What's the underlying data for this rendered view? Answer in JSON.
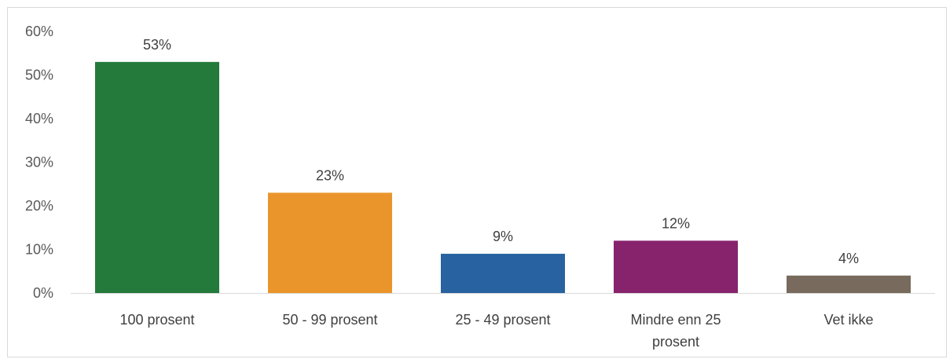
{
  "chart_data": {
    "type": "bar",
    "categories": [
      "100 prosent",
      "50 - 99 prosent",
      "25 - 49 prosent",
      "Mindre enn 25 prosent",
      "Vet ikke"
    ],
    "category_lines": [
      [
        "100 prosent"
      ],
      [
        "50 - 99 prosent"
      ],
      [
        "25 - 49 prosent"
      ],
      [
        "Mindre enn 25",
        "prosent"
      ],
      [
        "Vet ikke"
      ]
    ],
    "values": [
      53,
      23,
      9,
      12,
      4
    ],
    "data_labels": [
      "53%",
      "23%",
      "9%",
      "12%",
      "4%"
    ],
    "colors": [
      "#237a3b",
      "#ea952b",
      "#2862a0",
      "#87236d",
      "#786a5c"
    ],
    "ylim": [
      0,
      60
    ],
    "yticks": [
      0,
      10,
      20,
      30,
      40,
      50,
      60
    ],
    "ytick_labels": [
      "0%",
      "10%",
      "20%",
      "30%",
      "40%",
      "50%",
      "60%"
    ],
    "title": "",
    "xlabel": "",
    "ylabel": "",
    "grid": false,
    "legend": false
  }
}
